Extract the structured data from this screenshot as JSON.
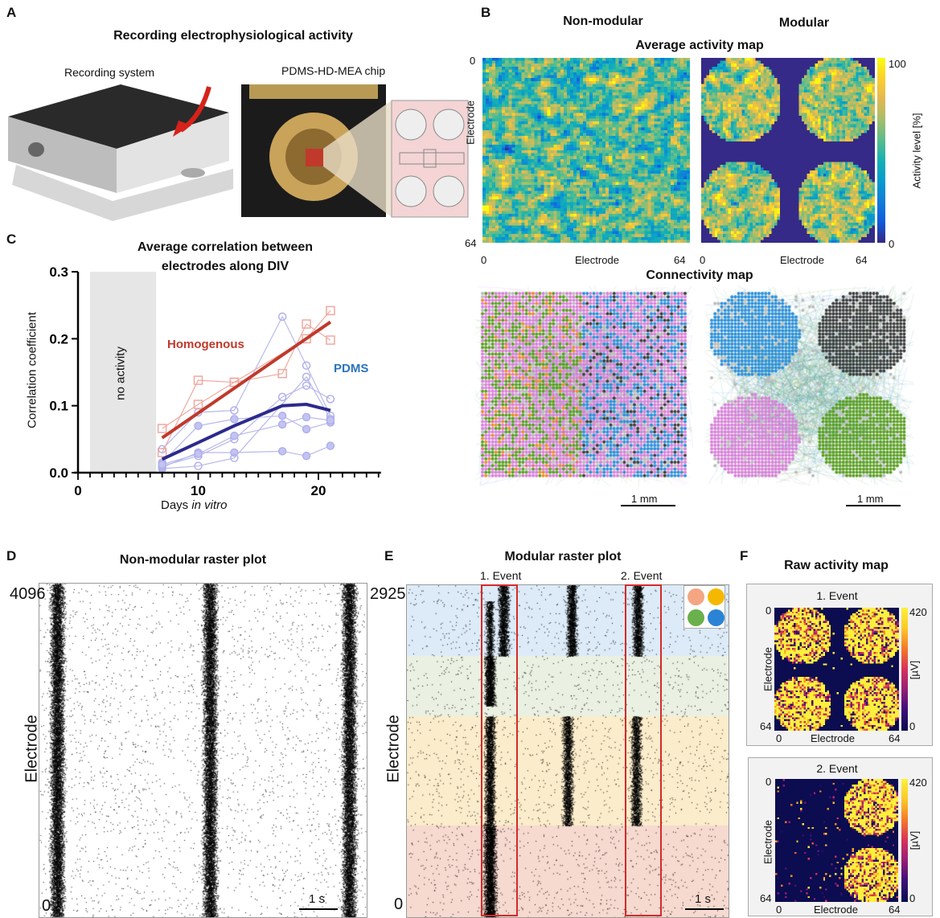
{
  "panels": {
    "a": "A",
    "b": "B",
    "c": "C",
    "d": "D",
    "e": "E",
    "f": "F"
  },
  "panel_a": {
    "title": "Recording electrophysiological activity",
    "system_label": "Recording system",
    "chip_label": "PDMS-HD-MEA chip"
  },
  "panel_b": {
    "col_left": "Non-modular",
    "col_right": "Modular",
    "avg_title": "Average activity map",
    "conn_title": "Connectivity map",
    "axis_label": "Electrode",
    "tick_min": "0",
    "tick_max": "64",
    "colorbar_label": "Activity level [%]",
    "colorbar_min": "0",
    "colorbar_max": "100",
    "scale_bar": "1 mm",
    "colormap": "parula"
  },
  "chart_data": {
    "type": "line",
    "title": "Average correlation between electrodes along DIV",
    "xlabel": "Days in vitro",
    "xlabel_plain": "Days ",
    "xlabel_italic": "in vitro",
    "ylabel": "Correlation coefficient",
    "xlim": [
      0,
      25
    ],
    "ylim": [
      0,
      0.3
    ],
    "xticks": [
      "0",
      "10",
      "20"
    ],
    "yticks": [
      "0.0",
      "0.1",
      "0.2",
      "0.3"
    ],
    "shaded_region": {
      "x": [
        1,
        6.5
      ],
      "label": "no activity"
    },
    "series": [
      {
        "name": "Homogenous",
        "color": "#c0392b",
        "x": [
          7,
          21
        ],
        "y": [
          0.052,
          0.225
        ],
        "kind": "fit"
      },
      {
        "name": "PDMS",
        "color": "#2c2a8c",
        "x": [
          7,
          10,
          13,
          17,
          19,
          21
        ],
        "y": [
          0.02,
          0.045,
          0.07,
          0.1,
          0.102,
          0.093
        ],
        "kind": "mean"
      }
    ],
    "individual_homogenous": [
      {
        "x": [
          7,
          10,
          13,
          17,
          19,
          21
        ],
        "y": [
          0.066,
          0.102,
          0.135,
          0.148,
          0.222,
          0.198
        ]
      },
      {
        "x": [
          7,
          10,
          13,
          19,
          21
        ],
        "y": [
          0.03,
          0.138,
          0.135,
          0.2,
          0.242
        ]
      }
    ],
    "individual_pdms": [
      {
        "x": [
          7,
          10,
          13,
          17,
          19,
          21
        ],
        "y": [
          0.035,
          0.09,
          0.093,
          0.233,
          0.16,
          0.085
        ]
      },
      {
        "x": [
          7,
          10,
          13,
          17,
          19,
          21
        ],
        "y": [
          0.008,
          0.03,
          0.03,
          0.032,
          0.025,
          0.04
        ]
      },
      {
        "x": [
          7,
          10,
          13,
          19,
          21
        ],
        "y": [
          0.006,
          0.01,
          0.022,
          0.143,
          0.08
        ]
      },
      {
        "x": [
          7,
          10,
          13,
          17,
          19,
          21
        ],
        "y": [
          0.015,
          0.07,
          0.08,
          0.085,
          0.065,
          0.075
        ]
      },
      {
        "x": [
          7,
          10,
          13,
          17,
          19,
          21
        ],
        "y": [
          0.01,
          0.025,
          0.05,
          0.113,
          0.13,
          0.11
        ]
      },
      {
        "x": [
          7,
          10,
          13,
          17,
          19,
          21
        ],
        "y": [
          0.012,
          0.028,
          0.055,
          0.072,
          0.083,
          0.078
        ]
      }
    ]
  },
  "panel_d": {
    "title": "Non-modular raster plot",
    "y_max": "4096",
    "y_min": "0",
    "ylabel": "Electrode",
    "scale_bar": "1 s"
  },
  "panel_e": {
    "title": "Modular raster plot",
    "event1": "1. Event",
    "event2": "2. Event",
    "y_max": "2925",
    "y_min": "0",
    "ylabel": "Electrode",
    "scale_bar": "1 s",
    "module_colors": [
      "#f4a582",
      "#f5b800",
      "#6ab04c",
      "#2b83d6"
    ],
    "band_colors": [
      "#dcebf7",
      "#eaf0e2",
      "#fbeccb",
      "#f6d9cf"
    ]
  },
  "panel_f": {
    "title": "Raw activity map",
    "event1": "1. Event",
    "event2": "2. Event",
    "axis_label": "Electrode",
    "tick_min": "0",
    "tick_max": "64",
    "colorbar_label": "[µV]",
    "colorbar_min": "0",
    "colorbar_max": "420"
  }
}
